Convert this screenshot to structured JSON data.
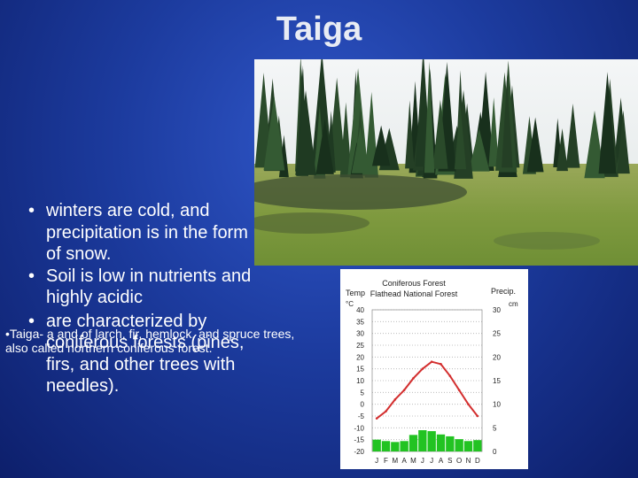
{
  "slide": {
    "title": "Taiga",
    "bullets": [
      "winters are cold, and precipitation is in the form of snow.",
      "Soil is low in nutrients and highly acidic",
      "are characterized by coniferous forests (pines, firs, and other trees with needles)."
    ],
    "bullet_marker": "•",
    "note": "•Taiga- a and of larch, fir, hemlock, and spruce trees, also called northern coniferous forest."
  },
  "chart_data": {
    "type": "bar",
    "title": "Coniferous Forest",
    "subtitle": "Flathead National Forest",
    "y_left_label": "Temp",
    "y_left_unit": "°C",
    "y_right_label": "Precip.",
    "y_right_unit": "cm",
    "categories": [
      "J",
      "F",
      "M",
      "A",
      "M",
      "J",
      "J",
      "A",
      "S",
      "O",
      "N",
      "D"
    ],
    "left_ticks": [
      "40",
      "35",
      "30",
      "25",
      "20",
      "15",
      "10",
      "5",
      "0",
      "-5",
      "-10",
      "-15",
      "-20"
    ],
    "right_ticks": [
      "30",
      "25",
      "20",
      "15",
      "10",
      "5",
      "0"
    ],
    "ylim_temp": [
      -20,
      40
    ],
    "ylim_precip": [
      0,
      30
    ],
    "series": [
      {
        "kind": "line",
        "values": [
          -6,
          -3,
          2,
          6,
          11,
          15,
          18,
          17,
          12,
          6,
          0,
          -5
        ]
      },
      {
        "kind": "bar",
        "values": [
          2.5,
          2.2,
          2.0,
          2.2,
          3.5,
          4.5,
          4.3,
          3.6,
          3.2,
          2.6,
          2.2,
          2.4
        ]
      }
    ],
    "colors": {
      "temp": "#d32f2f",
      "precip": "#22c322",
      "grid": "#b0b0b0"
    },
    "grid": "dotted"
  }
}
